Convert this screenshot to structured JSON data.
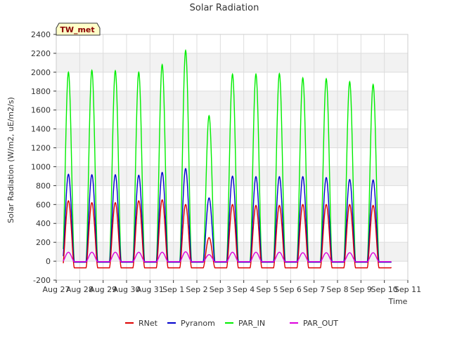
{
  "chart_data": {
    "type": "line",
    "title": "Solar Radiation",
    "badge": "TW_met",
    "xlabel": "Time",
    "ylabel": "Solar Radiation (W/m2, uE/m2/s)",
    "ylim": [
      -200,
      2400
    ],
    "yticks": [
      -200,
      0,
      200,
      400,
      600,
      800,
      1000,
      1200,
      1400,
      1600,
      1800,
      2000,
      2200,
      2400
    ],
    "xticks": [
      "Aug 27",
      "Aug 28",
      "Aug 29",
      "Aug 30",
      "Aug 31",
      "Sep 1",
      "Sep 2",
      "Sep 3",
      "Sep 4",
      "Sep 5",
      "Sep 6",
      "Sep 7",
      "Sep 8",
      "Sep 9",
      "Sep 10",
      "Sep 11"
    ],
    "xlim_days": [
      0,
      15
    ],
    "data_range_days": [
      0.3,
      14.3
    ],
    "legend_position": "bottom-center",
    "series": [
      {
        "name": "RNet",
        "color": "#dd0000",
        "daily_peak": [
          640,
          620,
          620,
          640,
          650,
          600,
          250,
          600,
          590,
          590,
          600,
          600,
          600,
          590
        ],
        "night": -70
      },
      {
        "name": "Pyranom",
        "color": "#0000cc",
        "daily_peak": [
          920,
          915,
          915,
          910,
          940,
          980,
          670,
          900,
          895,
          895,
          895,
          885,
          865,
          860
        ],
        "night": -10
      },
      {
        "name": "PAR_IN",
        "color": "#00ee00",
        "daily_peak": [
          2000,
          2020,
          2015,
          2000,
          2080,
          2230,
          1540,
          1980,
          1980,
          1985,
          1940,
          1930,
          1900,
          1870
        ],
        "night": -10
      },
      {
        "name": "PAR_OUT",
        "color": "#dd00dd",
        "daily_peak": [
          95,
          95,
          95,
          95,
          95,
          100,
          70,
          95,
          95,
          95,
          90,
          90,
          90,
          90
        ],
        "night": -5
      }
    ]
  }
}
